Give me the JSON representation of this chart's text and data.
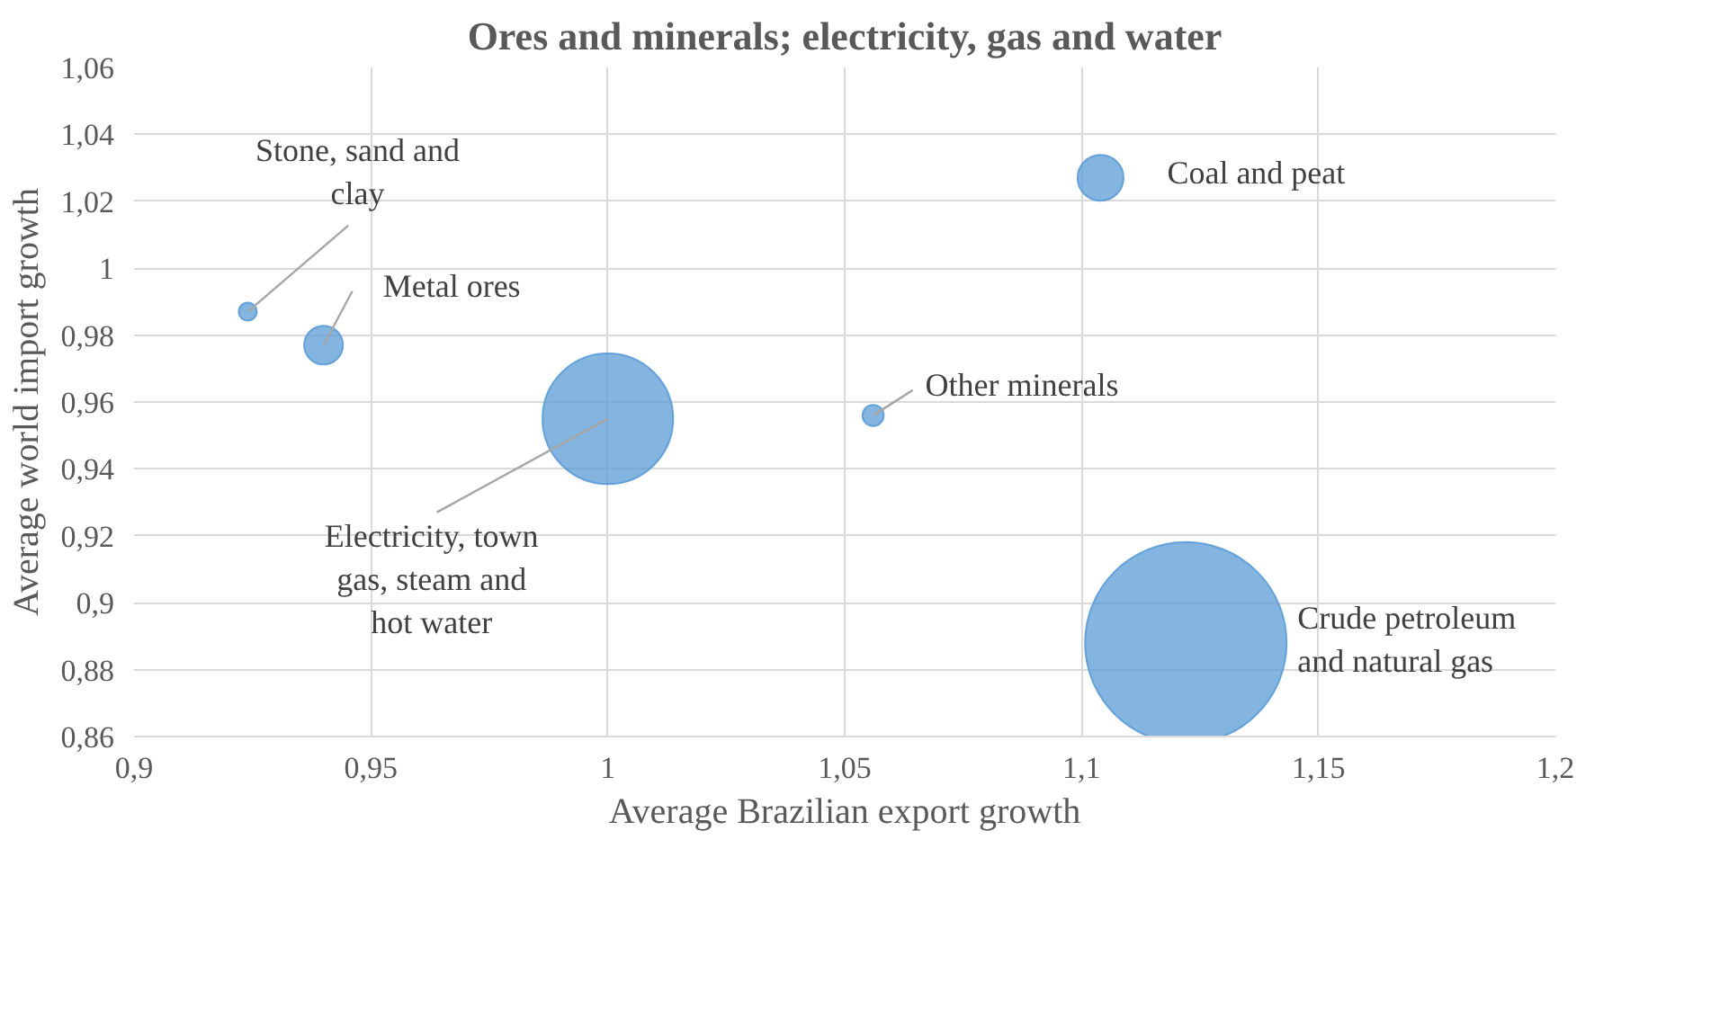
{
  "chart_data": {
    "type": "bubble",
    "title": "Ores and minerals; electricity, gas and water",
    "xlabel": "Average Brazilian export growth",
    "ylabel": "Average world import growth",
    "series": [
      {
        "name": "Stone, sand and clay",
        "color": "#5b9bd5",
        "x": [
          0.924
        ],
        "values": [
          0.987
        ],
        "sizes": [
          0.008
        ]
      },
      {
        "name": "Metal ores",
        "color": "#5b9bd5",
        "x": [
          0.94
        ],
        "values": [
          0.977
        ],
        "sizes": [
          0.037
        ]
      },
      {
        "name": "Electricity, town gas, steam and hot water",
        "color": "#5b9bd5",
        "x": [
          1.0
        ],
        "values": [
          0.955
        ],
        "sizes": [
          0.42
        ]
      },
      {
        "name": "Other minerals",
        "color": "#5b9bd5",
        "x": [
          1.056
        ],
        "values": [
          0.956
        ],
        "sizes": [
          0.011
        ]
      },
      {
        "name": "Coal and peat",
        "color": "#5b9bd5",
        "x": [
          1.104
        ],
        "values": [
          1.027
        ],
        "sizes": [
          0.052
        ]
      },
      {
        "name": "Crude petroleum and natural gas",
        "color": "#5b9bd5",
        "x": [
          1.122
        ],
        "values": [
          0.888
        ],
        "sizes": [
          1
        ]
      }
    ],
    "xlim": [
      0.9,
      1.2
    ],
    "xticks": [
      {
        "value": 0.9,
        "label": "0,9"
      },
      {
        "value": 0.95,
        "label": "0,95"
      },
      1,
      {
        "value": 1.05,
        "label": "1,05"
      },
      {
        "value": 1.1,
        "label": "1,1"
      },
      {
        "value": 1.15,
        "label": "1,15"
      },
      {
        "value": 1.2,
        "label": "1,2"
      }
    ],
    "ylim": [
      0.86,
      1.06
    ],
    "yticks": [
      {
        "value": 0.86,
        "label": "0,86"
      },
      {
        "value": 0.88,
        "label": "0,88"
      },
      {
        "value": 0.9,
        "label": "0,9"
      },
      {
        "value": 0.92,
        "label": "0,92"
      },
      {
        "value": 0.94,
        "label": "0,94"
      },
      {
        "value": 0.96,
        "label": "0,96"
      },
      {
        "value": 0.98,
        "label": "0,98"
      },
      1,
      {
        "value": 1.02,
        "label": "1,02"
      },
      {
        "value": 1.04,
        "label": "1,04"
      },
      {
        "value": 1.06,
        "label": "1,06"
      }
    ],
    "grid": true
  }
}
